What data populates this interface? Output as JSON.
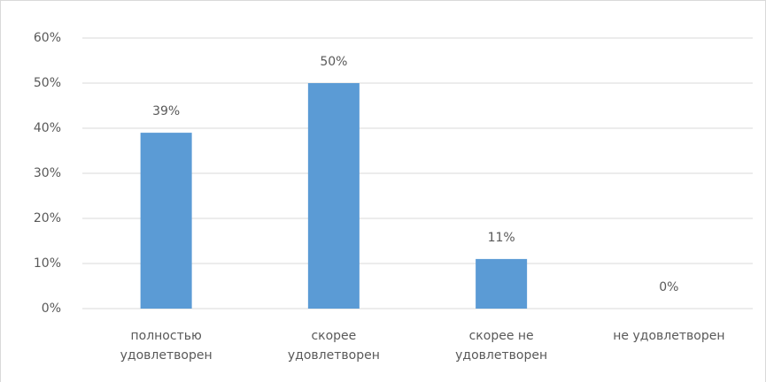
{
  "chart_data": {
    "type": "bar",
    "categories": [
      "полностью удовлетворен",
      "скорее удовлетворен",
      "скорее не удовлетворен",
      "не удовлетворен"
    ],
    "values": [
      39,
      50,
      11,
      0
    ],
    "value_labels": [
      "39%",
      "50%",
      "11%",
      "0%"
    ],
    "color": "#5b9bd5",
    "ylim": [
      0,
      60
    ],
    "yticks": [
      {
        "value": 0,
        "label": "0%"
      },
      {
        "value": 10,
        "label": "10%"
      },
      {
        "value": 20,
        "label": "20%"
      },
      {
        "value": 30,
        "label": "30%"
      },
      {
        "value": 40,
        "label": "40%"
      },
      {
        "value": 50,
        "label": "50%"
      },
      {
        "value": 60,
        "label": "60%"
      }
    ],
    "grid": true
  }
}
